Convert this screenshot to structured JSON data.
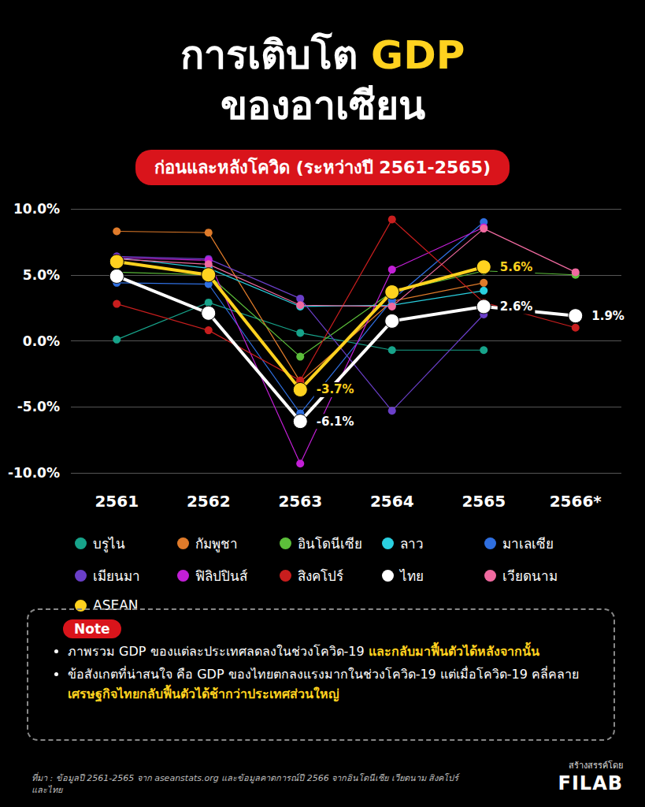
{
  "chart_data": {
    "type": "line",
    "title": [
      "การเติบโต GDP",
      "ของอาเซียน"
    ],
    "subtitle": "ก่อนและหลังโควิด (ระหว่างปี 2561-2565)",
    "categories": [
      "2561",
      "2562",
      "2563",
      "2564",
      "2565",
      "2566*"
    ],
    "ylim": [
      -10,
      10
    ],
    "yticks": [
      {
        "value": -10,
        "label": "-10.0%"
      },
      {
        "value": -5,
        "label": "-5.0%"
      },
      {
        "value": 0,
        "label": "0.0%"
      },
      {
        "value": 5,
        "label": "5.0%"
      },
      {
        "value": 10,
        "label": "10.0%"
      }
    ],
    "grid": true,
    "legend": "bottom",
    "marker": "circle",
    "line_style": "thin",
    "series": [
      {
        "name": "บรูไน",
        "color": "#17a38a",
        "values": [
          0.1,
          2.9,
          0.6,
          -0.7,
          -0.7,
          null
        ]
      },
      {
        "name": "กัมพูชา",
        "color": "#e07b2a",
        "values": [
          8.3,
          8.2,
          -3.1,
          3.0,
          4.4,
          null
        ]
      },
      {
        "name": "อินโดนีเซีย",
        "color": "#5cbf3a",
        "values": [
          5.2,
          5.0,
          -1.2,
          3.7,
          5.3,
          5.0
        ]
      },
      {
        "name": "ลาว",
        "color": "#2ad0e0",
        "values": [
          6.3,
          5.5,
          2.6,
          2.7,
          3.8,
          null
        ]
      },
      {
        "name": "มาเลเซีย",
        "color": "#2f6fe0",
        "values": [
          4.4,
          4.3,
          -5.5,
          3.1,
          9.0,
          null
        ]
      },
      {
        "name": "เมียนมา",
        "color": "#6a3fc8",
        "values": [
          6.4,
          6.2,
          3.2,
          -5.3,
          2.0,
          null
        ]
      },
      {
        "name": "ฟิลิปปินส์",
        "color": "#c21fd6",
        "values": [
          6.3,
          6.1,
          -9.3,
          5.4,
          8.6,
          null
        ]
      },
      {
        "name": "สิงคโปร์",
        "color": "#c81e1e",
        "values": [
          2.8,
          0.8,
          -3.0,
          9.2,
          2.9,
          1.0
        ]
      },
      {
        "name": "ไทย",
        "color": "#ffffff",
        "line_style": "thick",
        "values": [
          4.9,
          2.1,
          -6.1,
          1.5,
          2.6,
          1.9
        ],
        "value_labels": [
          null,
          null,
          "-6.1%",
          null,
          "2.6%",
          "1.9%"
        ]
      },
      {
        "name": "เวียดนาม",
        "color": "#f06aa0",
        "values": [
          6.2,
          5.8,
          2.7,
          2.6,
          8.5,
          5.2
        ]
      },
      {
        "name": "ASEAN",
        "color": "#ffd21f",
        "line_style": "thick",
        "values": [
          6.0,
          5.0,
          -3.7,
          3.7,
          5.6,
          null
        ],
        "value_labels": [
          null,
          null,
          "-3.7%",
          null,
          "5.6%",
          null
        ]
      }
    ],
    "note_title": "Note",
    "notes": [
      [
        "ภาพรวม GDP ของแต่ละประเทศลดลงในช่วงโควิด-19 ",
        "และกลับมาฟื้นตัวได้หลังจากนั้น"
      ],
      [
        "ข้อสังเกตที่น่าสนใจ คือ GDP ของไทยตกลงแรงมากในช่วงโควิด-19 แต่เมื่อโควิด-19 คลี่คลาย ",
        "เศรษฐกิจไทยกลับฟื้นตัวได้ช้ากว่าประเทศส่วนใหญ่"
      ]
    ],
    "source": "ที่มา : ข้อมูลปี 2561-2565 จาก aseanstats.org และข้อมูลคาดการณ์ปี 2566 จากอินโดนีเซีย เวียดนาม สิงคโปร์ และไทย",
    "credit": [
      "สร้างสรรค์โดย",
      "FILAB"
    ]
  }
}
